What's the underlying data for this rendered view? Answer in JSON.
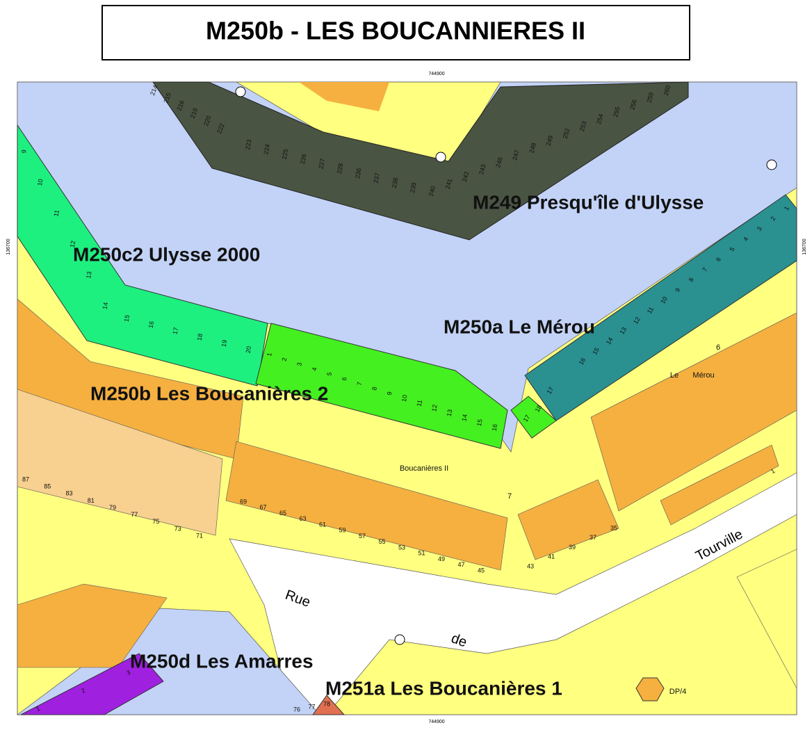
{
  "map": {
    "title": "M250b - LES BOUCANNIERES II",
    "coord_top": "744900",
    "coord_bottom": "744900",
    "coord_left": "136700",
    "coord_right": "136700",
    "zones": [
      "M249 Presqu'île d'Ulysse",
      "M250c2 Ulysse 2000",
      "M250a Le Mérou",
      "M250b Les Boucanières 2",
      "M250d Les Amarres",
      "M251a Les Boucanières 1"
    ],
    "places": [
      "Le",
      "Mérou",
      "Boucanières II",
      "6",
      "7",
      "DP/4"
    ],
    "streets": [
      "Rue",
      "de",
      "Tourville"
    ],
    "moorings_m249": [
      "214",
      "215",
      "216",
      "219",
      "220",
      "222",
      "223",
      "224",
      "225",
      "226",
      "227",
      "228",
      "236",
      "237",
      "238",
      "239",
      "240",
      "241",
      "242",
      "243",
      "246",
      "247",
      "248",
      "249",
      "252",
      "253",
      "254",
      "255",
      "256",
      "259",
      "260"
    ],
    "moorings_c2": [
      "9",
      "10",
      "11",
      "12",
      "13",
      "14",
      "15",
      "16",
      "17",
      "18",
      "19",
      "20"
    ],
    "moorings_b": [
      "1",
      "2",
      "3",
      "4",
      "5",
      "6",
      "7",
      "8",
      "9",
      "10",
      "11",
      "12",
      "13",
      "14",
      "15",
      "16",
      "17",
      "18"
    ],
    "moorings_a": [
      "1",
      "2",
      "3",
      "4",
      "5",
      "6",
      "7",
      "8",
      "9",
      "10",
      "11",
      "12",
      "13",
      "14",
      "15",
      "16",
      "17"
    ],
    "moorings_d": [
      "1",
      "2",
      "3"
    ],
    "moorings_251a": [
      "76",
      "77",
      "78"
    ],
    "addresses_west": [
      "87",
      "85",
      "83",
      "81",
      "79",
      "77",
      "75",
      "73",
      "71"
    ],
    "addresses_mid": [
      "69",
      "67",
      "65",
      "63",
      "61",
      "59",
      "57",
      "55",
      "53",
      "51",
      "49",
      "47",
      "45"
    ],
    "addresses_east": [
      "43",
      "41",
      "39",
      "37",
      "35",
      "1"
    ]
  }
}
